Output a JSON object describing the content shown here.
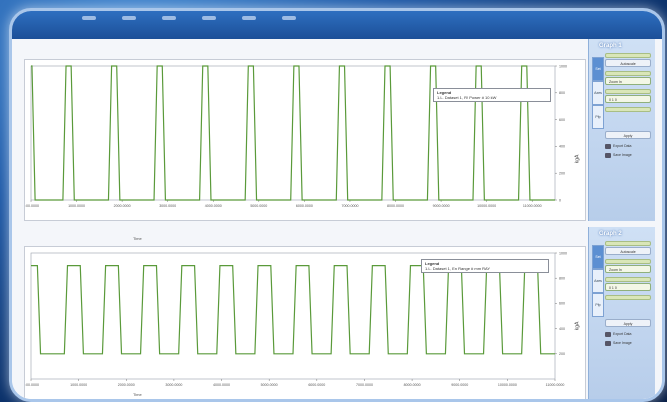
{
  "window": {
    "title": ""
  },
  "graphs": [
    {
      "panel_title": "Graph 1",
      "legend_title": "Legend",
      "legend_entry": "1.L. Dataset 1, R! Power # 10 kW",
      "y_label": "kgA",
      "x_label": "Time",
      "x_ticks": [
        "0:00.0000",
        "1000.0000",
        "2000.0000",
        "3000.0000",
        "4000.0000",
        "5000.0000",
        "6000.0000",
        "7000.0000",
        "8000.0000",
        "9000.0000",
        "10000.0000",
        "11000.0000"
      ],
      "y_ticks": [
        "1000",
        "800",
        "600",
        "400",
        "200",
        "0"
      ],
      "tabs": [
        "Set",
        "Axes",
        "Pfp"
      ],
      "controls": [
        "Autoscale",
        "Zoom In",
        "0 1 0",
        "Apply"
      ],
      "actions": [
        "Export Data",
        "Save Image"
      ]
    },
    {
      "panel_title": "Graph 2",
      "legend_title": "Legend",
      "legend_entry": "1.L. Dataset 1, En Range # mm RAY",
      "y_label": "kgA",
      "x_label": "Time",
      "x_ticks": [
        "0:00.0000",
        "1000.0000",
        "2000.0000",
        "3000.0000",
        "4000.0000",
        "5000.0000",
        "6000.0000",
        "7000.0000",
        "8000.0000",
        "9000.0000",
        "10000.0000",
        "11000.0000"
      ],
      "y_ticks": [
        "1000",
        "800",
        "600",
        "400",
        "200"
      ],
      "tabs": [
        "Set",
        "Axes",
        "Pfp"
      ],
      "controls": [
        "Autoscale",
        "Zoom In",
        "0 1 0",
        "Apply"
      ],
      "actions": [
        "Export Data",
        "Save Image"
      ]
    }
  ],
  "colors": {
    "trace": "#5a9a3a",
    "accent": "#2e6fc0"
  },
  "chart_data": [
    {
      "type": "line",
      "x": [
        0,
        1000,
        2000,
        3000,
        4000,
        5000,
        6000,
        7000,
        8000,
        9000,
        10000,
        11000
      ],
      "pulses": [
        [
          0,
          90
        ],
        [
          700,
          950
        ],
        [
          1700,
          1950
        ],
        [
          2700,
          2950
        ],
        [
          3700,
          3950
        ],
        [
          4700,
          4950
        ],
        [
          5700,
          5950
        ],
        [
          6700,
          6950
        ],
        [
          7700,
          7950
        ],
        [
          8700,
          8950
        ],
        [
          9700,
          9950
        ],
        [
          10700,
          10950
        ]
      ],
      "high": 1000,
      "low": 0,
      "ylim": [
        0,
        1000
      ],
      "xlim": [
        0,
        11500
      ]
    },
    {
      "type": "line",
      "x": [
        0,
        1000,
        2000,
        3000,
        4000,
        5000,
        6000,
        7000,
        8000,
        9000,
        10000,
        11000
      ],
      "pulses": [
        [
          0,
          200
        ],
        [
          700,
          1100
        ],
        [
          1500,
          1900
        ],
        [
          2300,
          2700
        ],
        [
          3100,
          3500
        ],
        [
          3900,
          4300
        ],
        [
          4700,
          5100
        ],
        [
          5500,
          5900
        ],
        [
          6300,
          6700
        ],
        [
          7100,
          7500
        ],
        [
          7900,
          8300
        ],
        [
          8700,
          9100
        ],
        [
          9500,
          9900
        ],
        [
          10300,
          10700
        ]
      ],
      "high": 900,
      "low": 200,
      "ylim": [
        0,
        1000
      ],
      "xlim": [
        0,
        11000
      ]
    }
  ]
}
